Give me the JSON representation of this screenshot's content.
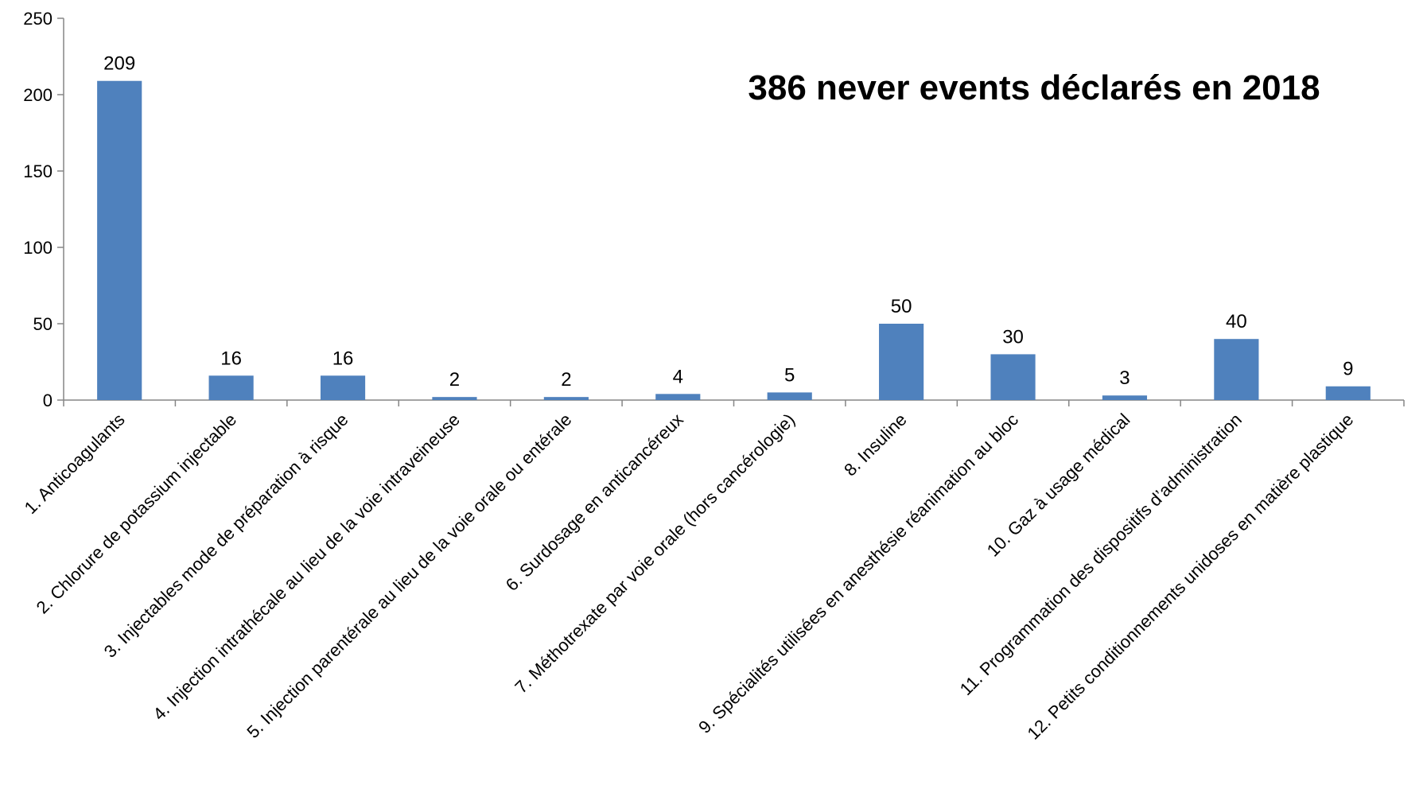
{
  "chart_data": {
    "type": "bar",
    "title": "386 never events déclarés en 2018",
    "xlabel": "",
    "ylabel": "",
    "ylim": [
      0,
      250
    ],
    "yticks": [
      0,
      50,
      100,
      150,
      200,
      250
    ],
    "grid": false,
    "legend": "none",
    "bar_color": "#4F81BD",
    "categories": [
      "1. Anticoagulants",
      "2. Chlorure de potassium injectable",
      "3. Injectables mode de préparation à risque",
      "4. Injection intrathécale au lieu de la voie intraveineuse",
      "5. Injection parentérale au lieu de la voie orale ou entérale",
      "6. Surdosage en anticancéreux",
      "7. Méthotrexate par voie orale (hors cancérologie)",
      "8. Insuline",
      "9. Spécialités utilisées en anesthésie réanimation au bloc",
      "10. Gaz à usage médical",
      "11. Programmation des dispositifs d’administration",
      "12. Petits conditionnements unidoses en matière plastique"
    ],
    "values": [
      209,
      16,
      16,
      2,
      2,
      4,
      5,
      50,
      30,
      3,
      40,
      9
    ],
    "data_labels": [
      "209",
      "16",
      "16",
      "2",
      "2",
      "4",
      "5",
      "50",
      "30",
      "3",
      "40",
      "9"
    ]
  }
}
